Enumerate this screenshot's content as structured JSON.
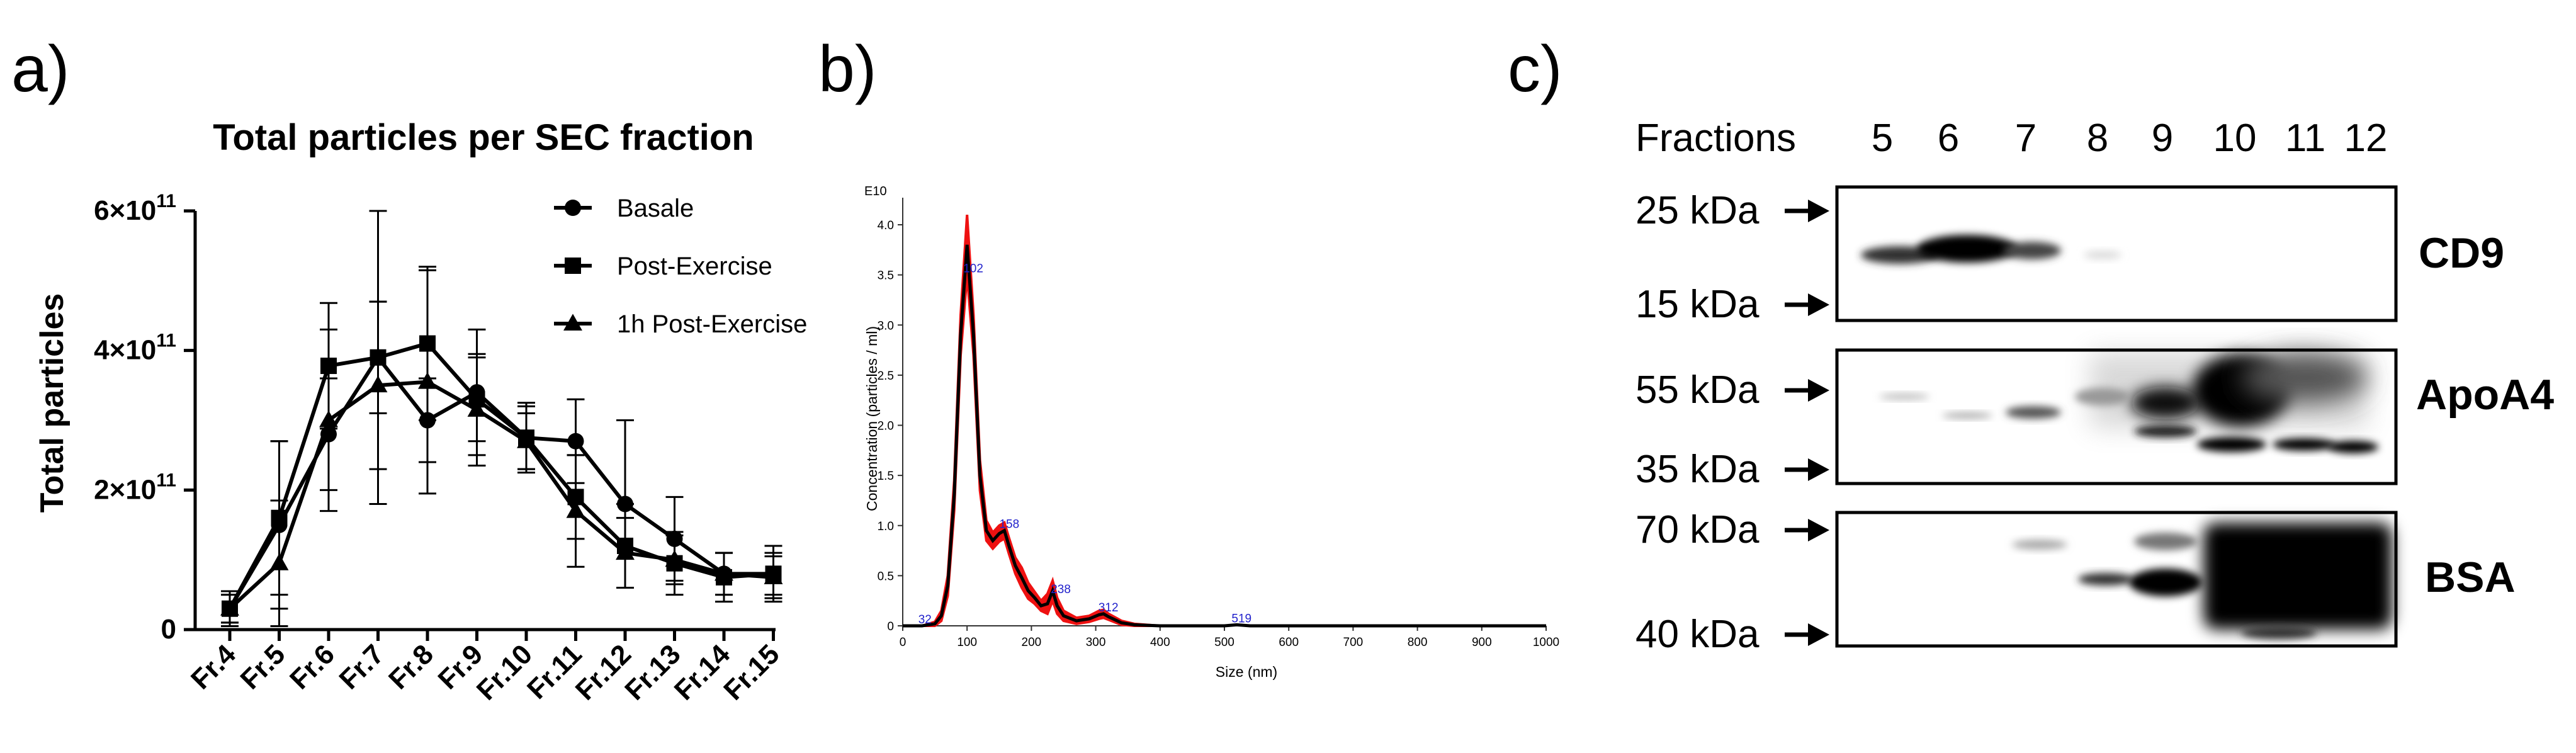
{
  "panels": {
    "a": "a)",
    "b": "b)",
    "c": "c)"
  },
  "chart_data": [
    {
      "id": "a",
      "type": "line",
      "title": "Total particles per SEC fraction",
      "xlabel": "",
      "ylabel": "Total particles",
      "categories": [
        "Fr.4",
        "Fr.5",
        "Fr.6",
        "Fr.7",
        "Fr.8",
        "Fr.9",
        "Fr.10",
        "Fr.11",
        "Fr.12",
        "Fr.13",
        "Fr.14",
        "Fr.15"
      ],
      "ylim": [
        0,
        600000000000
      ],
      "yticks": [
        {
          "value": 0,
          "label": "0",
          "sup": ""
        },
        {
          "value": 200000000000,
          "label": "2×10",
          "sup": "11"
        },
        {
          "value": 400000000000,
          "label": "4×10",
          "sup": "11"
        },
        {
          "value": 600000000000,
          "label": "6×10",
          "sup": "11"
        }
      ],
      "legend_position": "top-right",
      "series": [
        {
          "name": "Basale",
          "marker": "circle",
          "values": [
            30,
            150,
            280,
            390,
            300,
            340,
            275,
            270,
            180,
            130,
            80,
            80
          ],
          "err": [
            20,
            120,
            80,
            80,
            60,
            90,
            45,
            60,
            120,
            60,
            30,
            30
          ]
        },
        {
          "name": "Post-Exercise",
          "marker": "square",
          "values": [
            30,
            160,
            378,
            390,
            410,
            330,
            275,
            190,
            120,
            95,
            75,
            80
          ],
          "err": [
            25,
            110,
            90,
            210,
            110,
            60,
            50,
            60,
            60,
            45,
            35,
            40
          ]
        },
        {
          "name": "1h Post-Exercise",
          "marker": "triangle",
          "values": [
            30,
            95,
            300,
            350,
            355,
            315,
            270,
            170,
            110,
            100,
            80,
            75
          ],
          "err": [
            20,
            90,
            130,
            120,
            160,
            80,
            40,
            80,
            50,
            35,
            30,
            30
          ]
        }
      ],
      "value_scale_note": "values in units of 1e9 particles"
    },
    {
      "id": "b",
      "type": "area",
      "title": "",
      "xlabel": "Size (nm)",
      "ylabel": "Concentration (particles / ml)",
      "yexp": "E10",
      "xlim": [
        0,
        1000
      ],
      "ylim": [
        0,
        4.0
      ],
      "xticks": [
        0,
        100,
        200,
        300,
        400,
        500,
        600,
        700,
        800,
        900,
        1000
      ],
      "yticks": [
        "0",
        "0.5",
        "1.0",
        "1.5",
        "2.0",
        "2.5",
        "3.0",
        "3.5",
        "4.0"
      ],
      "series": [
        {
          "name": "",
          "x": [
            0,
            30,
            50,
            60,
            70,
            80,
            90,
            100,
            110,
            120,
            130,
            140,
            150,
            158,
            165,
            175,
            185,
            195,
            205,
            215,
            225,
            233,
            240,
            250,
            270,
            290,
            305,
            312,
            320,
            340,
            360,
            400,
            500,
            519,
            540,
            600,
            700,
            800,
            900,
            1000
          ],
          "y": [
            0,
            0,
            0.02,
            0.1,
            0.4,
            1.3,
            2.9,
            3.8,
            2.9,
            1.5,
            0.95,
            0.85,
            0.92,
            0.95,
            0.8,
            0.6,
            0.48,
            0.35,
            0.28,
            0.2,
            0.22,
            0.35,
            0.2,
            0.1,
            0.05,
            0.07,
            0.11,
            0.12,
            0.09,
            0.03,
            0.01,
            0,
            0,
            0.01,
            0,
            0,
            0,
            0,
            0,
            0
          ],
          "band": [
            0,
            0,
            0.02,
            0.05,
            0.1,
            0.15,
            0.2,
            0.3,
            0.2,
            0.15,
            0.1,
            0.08,
            0.08,
            0.08,
            0.08,
            0.08,
            0.1,
            0.08,
            0.06,
            0.05,
            0.1,
            0.1,
            0.08,
            0.05,
            0.03,
            0.03,
            0.04,
            0.04,
            0.03,
            0.02,
            0.01,
            0,
            0,
            0,
            0,
            0,
            0,
            0,
            0,
            0
          ]
        }
      ],
      "peak_labels": [
        {
          "x": 32,
          "y": 0.0,
          "label": "32"
        },
        {
          "x": 102,
          "y": 3.5,
          "label": "102"
        },
        {
          "x": 158,
          "y": 0.95,
          "label": "158"
        },
        {
          "x": 238,
          "y": 0.3,
          "label": "238"
        },
        {
          "x": 312,
          "y": 0.12,
          "label": "312"
        },
        {
          "x": 519,
          "y": 0.01,
          "label": "519"
        }
      ],
      "colors": {
        "line": "#000000",
        "band": "#ee1111",
        "peak_label": "#2222cc"
      }
    }
  ],
  "blot": {
    "fractions_label": "Fractions",
    "fractions": [
      "5",
      "6",
      "7",
      "8",
      "9",
      "10",
      "11",
      "12"
    ],
    "panels": [
      {
        "protein": "CD9",
        "markers": [
          "25 kDa",
          "15 kDa"
        ]
      },
      {
        "protein": "ApoA4",
        "markers": [
          "55 kDa",
          "35 kDa"
        ]
      },
      {
        "protein": "BSA",
        "markers": [
          "70 kDa",
          "40 kDa"
        ]
      }
    ]
  }
}
